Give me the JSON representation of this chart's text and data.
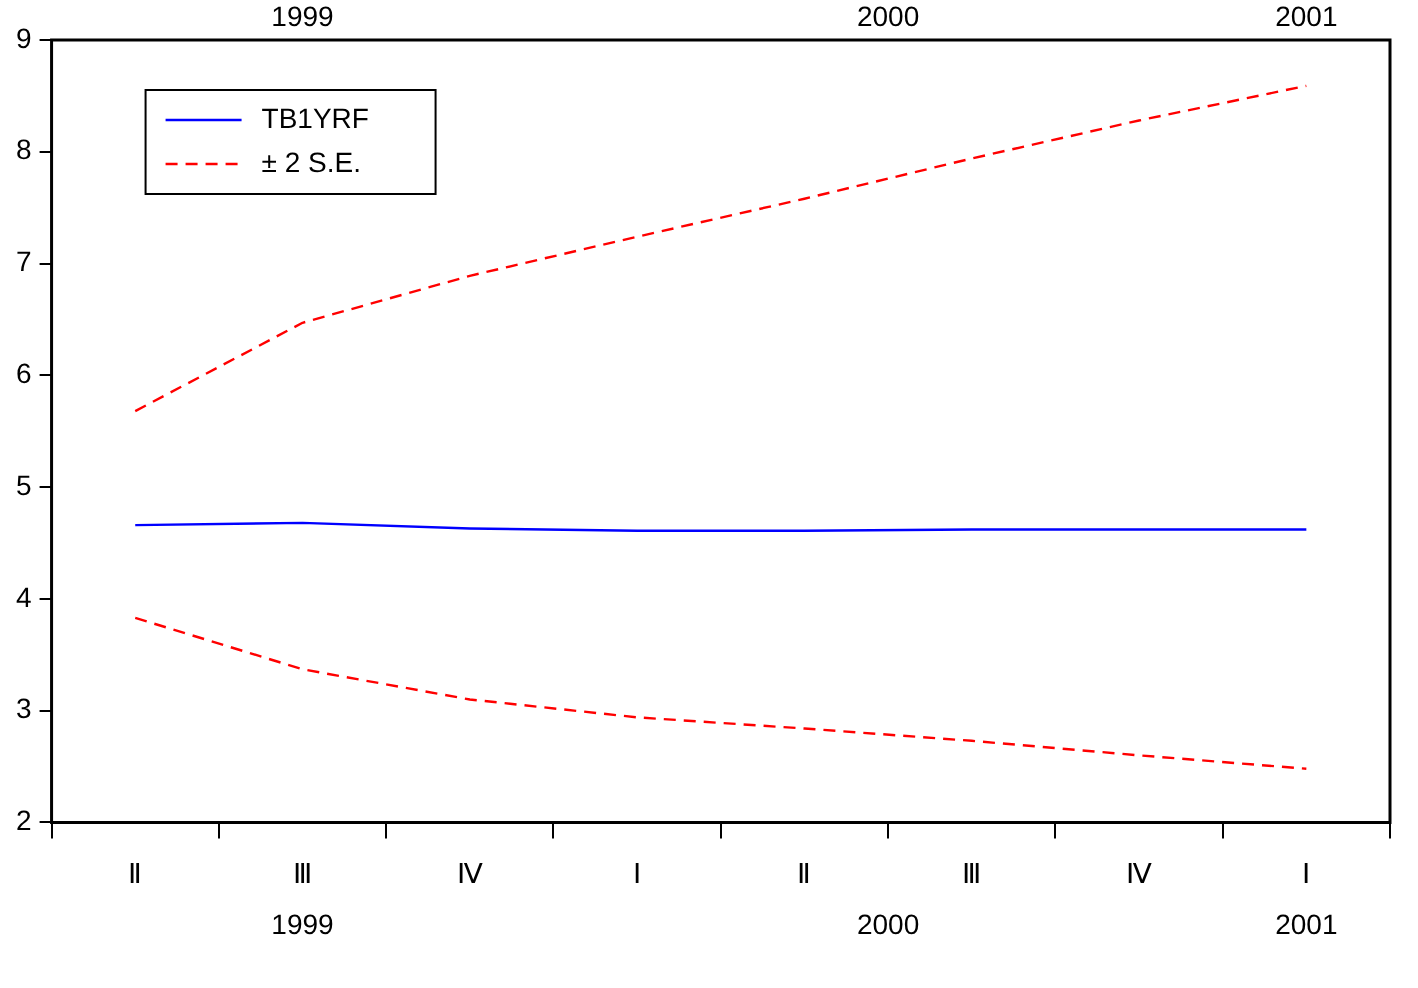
{
  "chart_data": {
    "type": "line",
    "categories": [
      "Ⅱ",
      "Ⅲ",
      "Ⅳ",
      "Ⅰ",
      "Ⅱ",
      "Ⅲ",
      "Ⅳ",
      "Ⅰ"
    ],
    "series": [
      {
        "name": "TB1YRF",
        "color": "#0000ff",
        "line_style": "solid",
        "values": [
          4.66,
          4.68,
          4.63,
          4.61,
          4.61,
          4.62,
          4.62,
          4.62
        ]
      },
      {
        "name": "± 2 S.E.",
        "color": "#ff0000",
        "line_style": "dashed",
        "values": [
          5.68,
          6.47,
          6.89,
          7.24,
          7.58,
          7.94,
          8.28,
          8.59
        ]
      },
      {
        "color": "#ff0000",
        "line_style": "dashed",
        "values": [
          3.83,
          3.37,
          3.1,
          2.94,
          2.84,
          2.73,
          2.6,
          2.48
        ]
      }
    ],
    "ylim": [
      2,
      9
    ],
    "yticks": [
      2,
      3,
      4,
      5,
      6,
      7,
      8,
      9
    ],
    "grid": false,
    "legend": "top left",
    "marker": "none",
    "annotations": [
      "1999",
      "2000",
      "2001"
    ]
  }
}
